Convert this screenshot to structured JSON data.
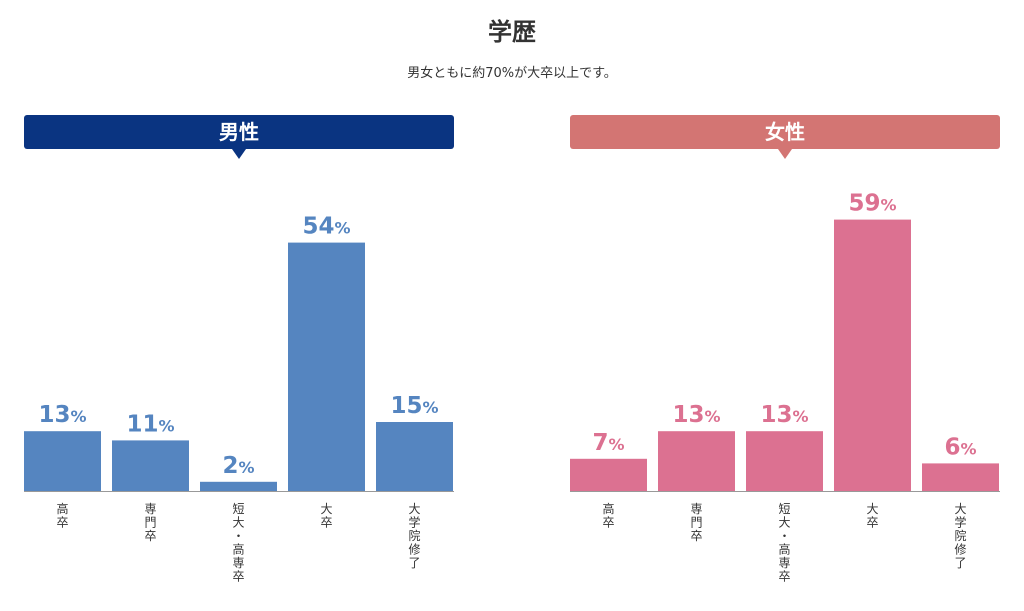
{
  "title": "学歴",
  "subtitle": "男女ともに約70%が大卒以上です。",
  "colors": {
    "male_banner": "#0a3481",
    "male_bar": "#5585c0",
    "female_banner": "#d37573",
    "female_bar": "#dc7191"
  },
  "chart_data": [
    {
      "type": "bar",
      "title": "男性",
      "categories": [
        "高卒",
        "専門卒",
        "短大・高専卒",
        "大卒",
        "大学院修了"
      ],
      "values": [
        13,
        11,
        2,
        54,
        15
      ],
      "unit": "%",
      "ylim": [
        0,
        60
      ],
      "grid": false
    },
    {
      "type": "bar",
      "title": "女性",
      "categories": [
        "高卒",
        "専門卒",
        "短大・高専卒",
        "大卒",
        "大学院修了"
      ],
      "values": [
        7,
        13,
        13,
        59,
        6
      ],
      "unit": "%",
      "ylim": [
        0,
        60
      ],
      "grid": false
    }
  ]
}
